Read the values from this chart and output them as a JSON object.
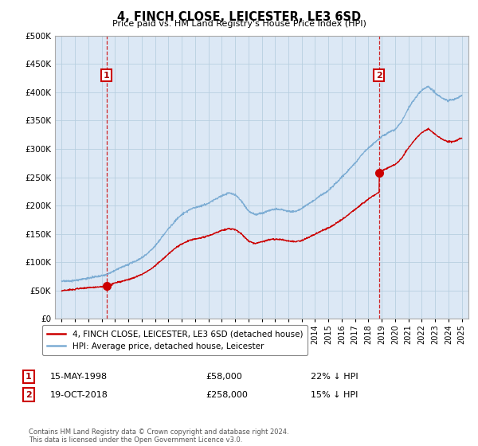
{
  "title": "4, FINCH CLOSE, LEICESTER, LE3 6SD",
  "subtitle": "Price paid vs. HM Land Registry's House Price Index (HPI)",
  "legend_line1": "4, FINCH CLOSE, LEICESTER, LE3 6SD (detached house)",
  "legend_line2": "HPI: Average price, detached house, Leicester",
  "point1_label": "1",
  "point1_date": "15-MAY-1998",
  "point1_price": "£58,000",
  "point1_pct": "22% ↓ HPI",
  "point1_x": 1998.37,
  "point1_y": 58000,
  "point2_label": "2",
  "point2_date": "19-OCT-2018",
  "point2_price": "£258,000",
  "point2_pct": "15% ↓ HPI",
  "point2_x": 2018.8,
  "point2_y": 258000,
  "ylim": [
    0,
    500000
  ],
  "xlim": [
    1994.5,
    2025.5
  ],
  "property_color": "#cc0000",
  "hpi_color": "#7dadd4",
  "plot_bg_color": "#dce8f5",
  "background_color": "#ffffff",
  "grid_color": "#b8cfe0",
  "footnote": "Contains HM Land Registry data © Crown copyright and database right 2024.\nThis data is licensed under the Open Government Licence v3.0."
}
